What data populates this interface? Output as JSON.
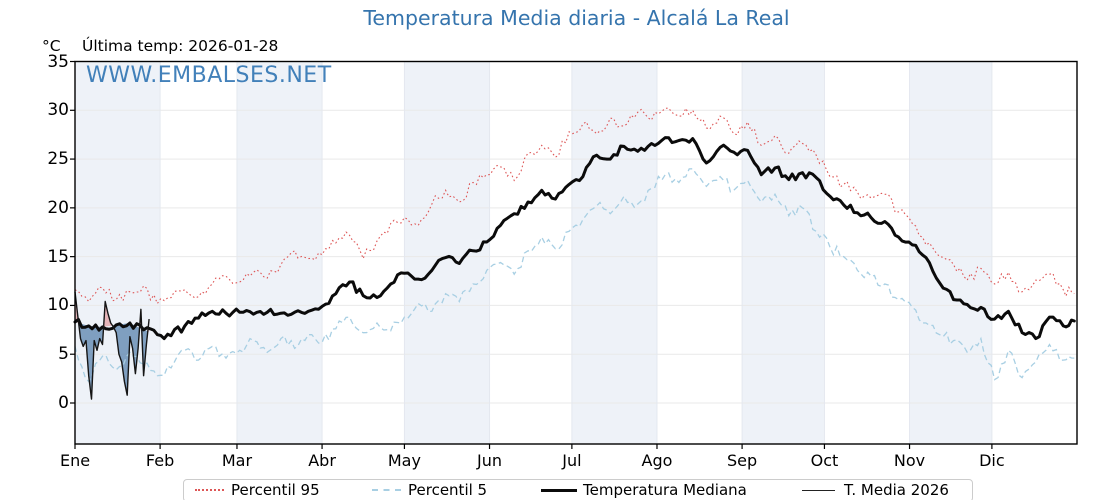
{
  "chart_data": {
    "type": "line",
    "title": "Temperatura Media diaria - Alcalá La Real",
    "annotation": "Última temp: 2026-01-28",
    "watermark": "WWW.EMBALSES.NET",
    "y_unit_label": "°C",
    "ylim": [
      -4.2,
      35
    ],
    "yticks": [
      0,
      5,
      10,
      15,
      20,
      25,
      30,
      35
    ],
    "x_axis": {
      "unit": "day_of_year",
      "range": [
        0,
        365
      ],
      "month_labels": [
        "Ene",
        "Feb",
        "Mar",
        "Abr",
        "May",
        "Jun",
        "Jul",
        "Ago",
        "Sep",
        "Oct",
        "Nov",
        "Dic"
      ],
      "month_start_days": [
        0,
        31,
        59,
        90,
        120,
        151,
        181,
        212,
        243,
        273,
        304,
        334
      ]
    },
    "background_bands": {
      "shaded_months": [
        "Ene",
        "Mar",
        "May",
        "Jul",
        "Sep",
        "Nov"
      ],
      "color": "#eef2f8"
    },
    "grid": {
      "h_color": "#e9e9e9",
      "v_color": "#e4e8ef"
    },
    "series": [
      {
        "name": "Percentil 95",
        "color": "#dd5656",
        "line_style": "dotted",
        "width": 1.1,
        "x": [
          0,
          5,
          10,
          15,
          20,
          25,
          30,
          35,
          40,
          45,
          50,
          55,
          60,
          65,
          70,
          75,
          80,
          85,
          90,
          95,
          100,
          105,
          110,
          115,
          120,
          125,
          130,
          135,
          140,
          145,
          150,
          155,
          160,
          165,
          170,
          175,
          180,
          185,
          190,
          195,
          200,
          205,
          210,
          215,
          220,
          225,
          230,
          235,
          240,
          245,
          250,
          255,
          260,
          265,
          270,
          275,
          280,
          285,
          290,
          295,
          300,
          305,
          310,
          315,
          320,
          325,
          330,
          335,
          340,
          345,
          350,
          355,
          360,
          364
        ],
        "values": [
          11.6,
          10.4,
          11.8,
          10.6,
          11.4,
          12.0,
          10.2,
          10.8,
          11.6,
          10.9,
          12.2,
          13.0,
          12.4,
          13.4,
          12.8,
          14.2,
          15.6,
          14.8,
          15.2,
          16.4,
          17.2,
          14.8,
          16.6,
          18.4,
          19.0,
          18.2,
          20.4,
          21.8,
          20.6,
          22.6,
          23.4,
          24.2,
          22.8,
          25.6,
          26.4,
          25.2,
          27.8,
          28.6,
          27.6,
          29.2,
          28.4,
          29.8,
          29.0,
          30.2,
          29.4,
          30.0,
          28.2,
          29.4,
          27.6,
          28.8,
          26.4,
          27.4,
          25.6,
          26.6,
          25.4,
          23.2,
          22.4,
          21.6,
          21.0,
          21.4,
          19.6,
          18.4,
          16.2,
          15.0,
          14.2,
          12.6,
          13.8,
          12.2,
          13.4,
          11.4,
          12.6,
          13.2,
          11.6,
          11.2
        ]
      },
      {
        "name": "Percentil 5",
        "color": "#a8cfe3",
        "line_style": "dashed",
        "width": 1.3,
        "x": [
          0,
          5,
          10,
          15,
          20,
          25,
          30,
          35,
          40,
          45,
          50,
          55,
          60,
          65,
          70,
          75,
          80,
          85,
          90,
          95,
          100,
          105,
          110,
          115,
          120,
          125,
          130,
          135,
          140,
          145,
          150,
          155,
          160,
          165,
          170,
          175,
          180,
          185,
          190,
          195,
          200,
          205,
          210,
          215,
          220,
          225,
          230,
          235,
          240,
          245,
          250,
          255,
          260,
          265,
          270,
          275,
          280,
          285,
          290,
          295,
          300,
          305,
          310,
          315,
          320,
          325,
          330,
          335,
          340,
          345,
          350,
          355,
          360,
          364
        ],
        "values": [
          5.8,
          2.2,
          4.8,
          3.4,
          5.2,
          4.0,
          2.8,
          3.6,
          5.4,
          4.4,
          5.8,
          4.6,
          5.4,
          6.4,
          5.2,
          6.6,
          5.6,
          7.0,
          6.2,
          7.6,
          8.8,
          7.2,
          8.2,
          7.4,
          8.8,
          10.2,
          9.4,
          11.2,
          10.4,
          12.2,
          13.6,
          14.4,
          13.2,
          15.6,
          17.0,
          15.8,
          17.6,
          18.8,
          20.2,
          19.4,
          21.2,
          20.4,
          22.0,
          23.4,
          22.6,
          24.0,
          22.2,
          23.2,
          21.8,
          22.8,
          20.6,
          21.4,
          19.2,
          20.0,
          17.6,
          16.0,
          15.0,
          13.6,
          13.0,
          12.2,
          10.6,
          9.8,
          8.2,
          7.0,
          6.4,
          5.2,
          6.6,
          2.4,
          5.4,
          2.6,
          4.2,
          6.0,
          4.4,
          4.6
        ]
      },
      {
        "name": "Temperatura Mediana",
        "color": "#0b0b0b",
        "line_style": "solid",
        "width": 3,
        "x": [
          0,
          5,
          10,
          15,
          20,
          25,
          30,
          35,
          40,
          45,
          50,
          55,
          60,
          65,
          70,
          75,
          80,
          85,
          90,
          95,
          100,
          105,
          110,
          115,
          120,
          125,
          130,
          135,
          140,
          145,
          150,
          155,
          160,
          165,
          170,
          175,
          180,
          185,
          190,
          195,
          200,
          205,
          210,
          215,
          220,
          225,
          230,
          235,
          240,
          245,
          250,
          255,
          260,
          265,
          270,
          275,
          280,
          285,
          290,
          295,
          300,
          305,
          310,
          315,
          320,
          325,
          330,
          335,
          340,
          345,
          350,
          355,
          360,
          364
        ],
        "values": [
          8.3,
          7.9,
          7.8,
          8.0,
          8.2,
          7.5,
          7.0,
          6.9,
          7.9,
          8.7,
          9.4,
          9.2,
          9.3,
          9.1,
          9.3,
          9.2,
          9.3,
          9.4,
          9.9,
          11.2,
          12.4,
          11.0,
          10.8,
          12.2,
          13.3,
          12.7,
          13.6,
          14.9,
          14.3,
          15.6,
          16.5,
          18.2,
          19.4,
          20.6,
          21.8,
          20.9,
          22.4,
          23.2,
          25.4,
          25.0,
          26.3,
          25.8,
          26.6,
          27.2,
          26.9,
          27.1,
          24.6,
          26.2,
          25.7,
          25.9,
          23.4,
          24.1,
          22.9,
          23.6,
          23.1,
          21.2,
          20.3,
          19.5,
          19.0,
          18.6,
          17.0,
          16.2,
          14.9,
          12.3,
          10.6,
          10.1,
          9.8,
          8.6,
          9.4,
          7.2,
          6.6,
          8.8,
          7.9,
          8.4
        ]
      },
      {
        "name": "T. Media 2026",
        "color": "#151515",
        "line_style": "solid",
        "width": 1.4,
        "x": [
          0,
          1,
          2,
          3,
          4,
          5,
          6,
          7,
          8,
          9,
          10,
          11,
          12,
          13,
          14,
          15,
          16,
          17,
          18,
          19,
          20,
          21,
          22,
          23,
          24,
          25,
          26,
          27
        ],
        "values": [
          11.4,
          9.0,
          6.6,
          5.8,
          6.4,
          2.8,
          0.4,
          6.4,
          5.4,
          6.6,
          6.0,
          10.4,
          9.2,
          8.2,
          7.8,
          7.2,
          5.0,
          4.2,
          2.2,
          0.8,
          6.8,
          5.6,
          3.0,
          5.6,
          9.6,
          2.8,
          6.0,
          8.6
        ]
      }
    ],
    "anomaly_fill": {
      "compares": [
        "T. Media 2026",
        "Temperatura Mediana"
      ],
      "above_median_color": "rgba(217,95,95,0.42)",
      "below_median_color": "rgba(54,104,155,0.6)"
    },
    "legend": {
      "position": "bottom-center",
      "items": [
        "Percentil 95",
        "Percentil 5",
        "Temperatura Mediana",
        "T. Media 2026"
      ]
    }
  }
}
